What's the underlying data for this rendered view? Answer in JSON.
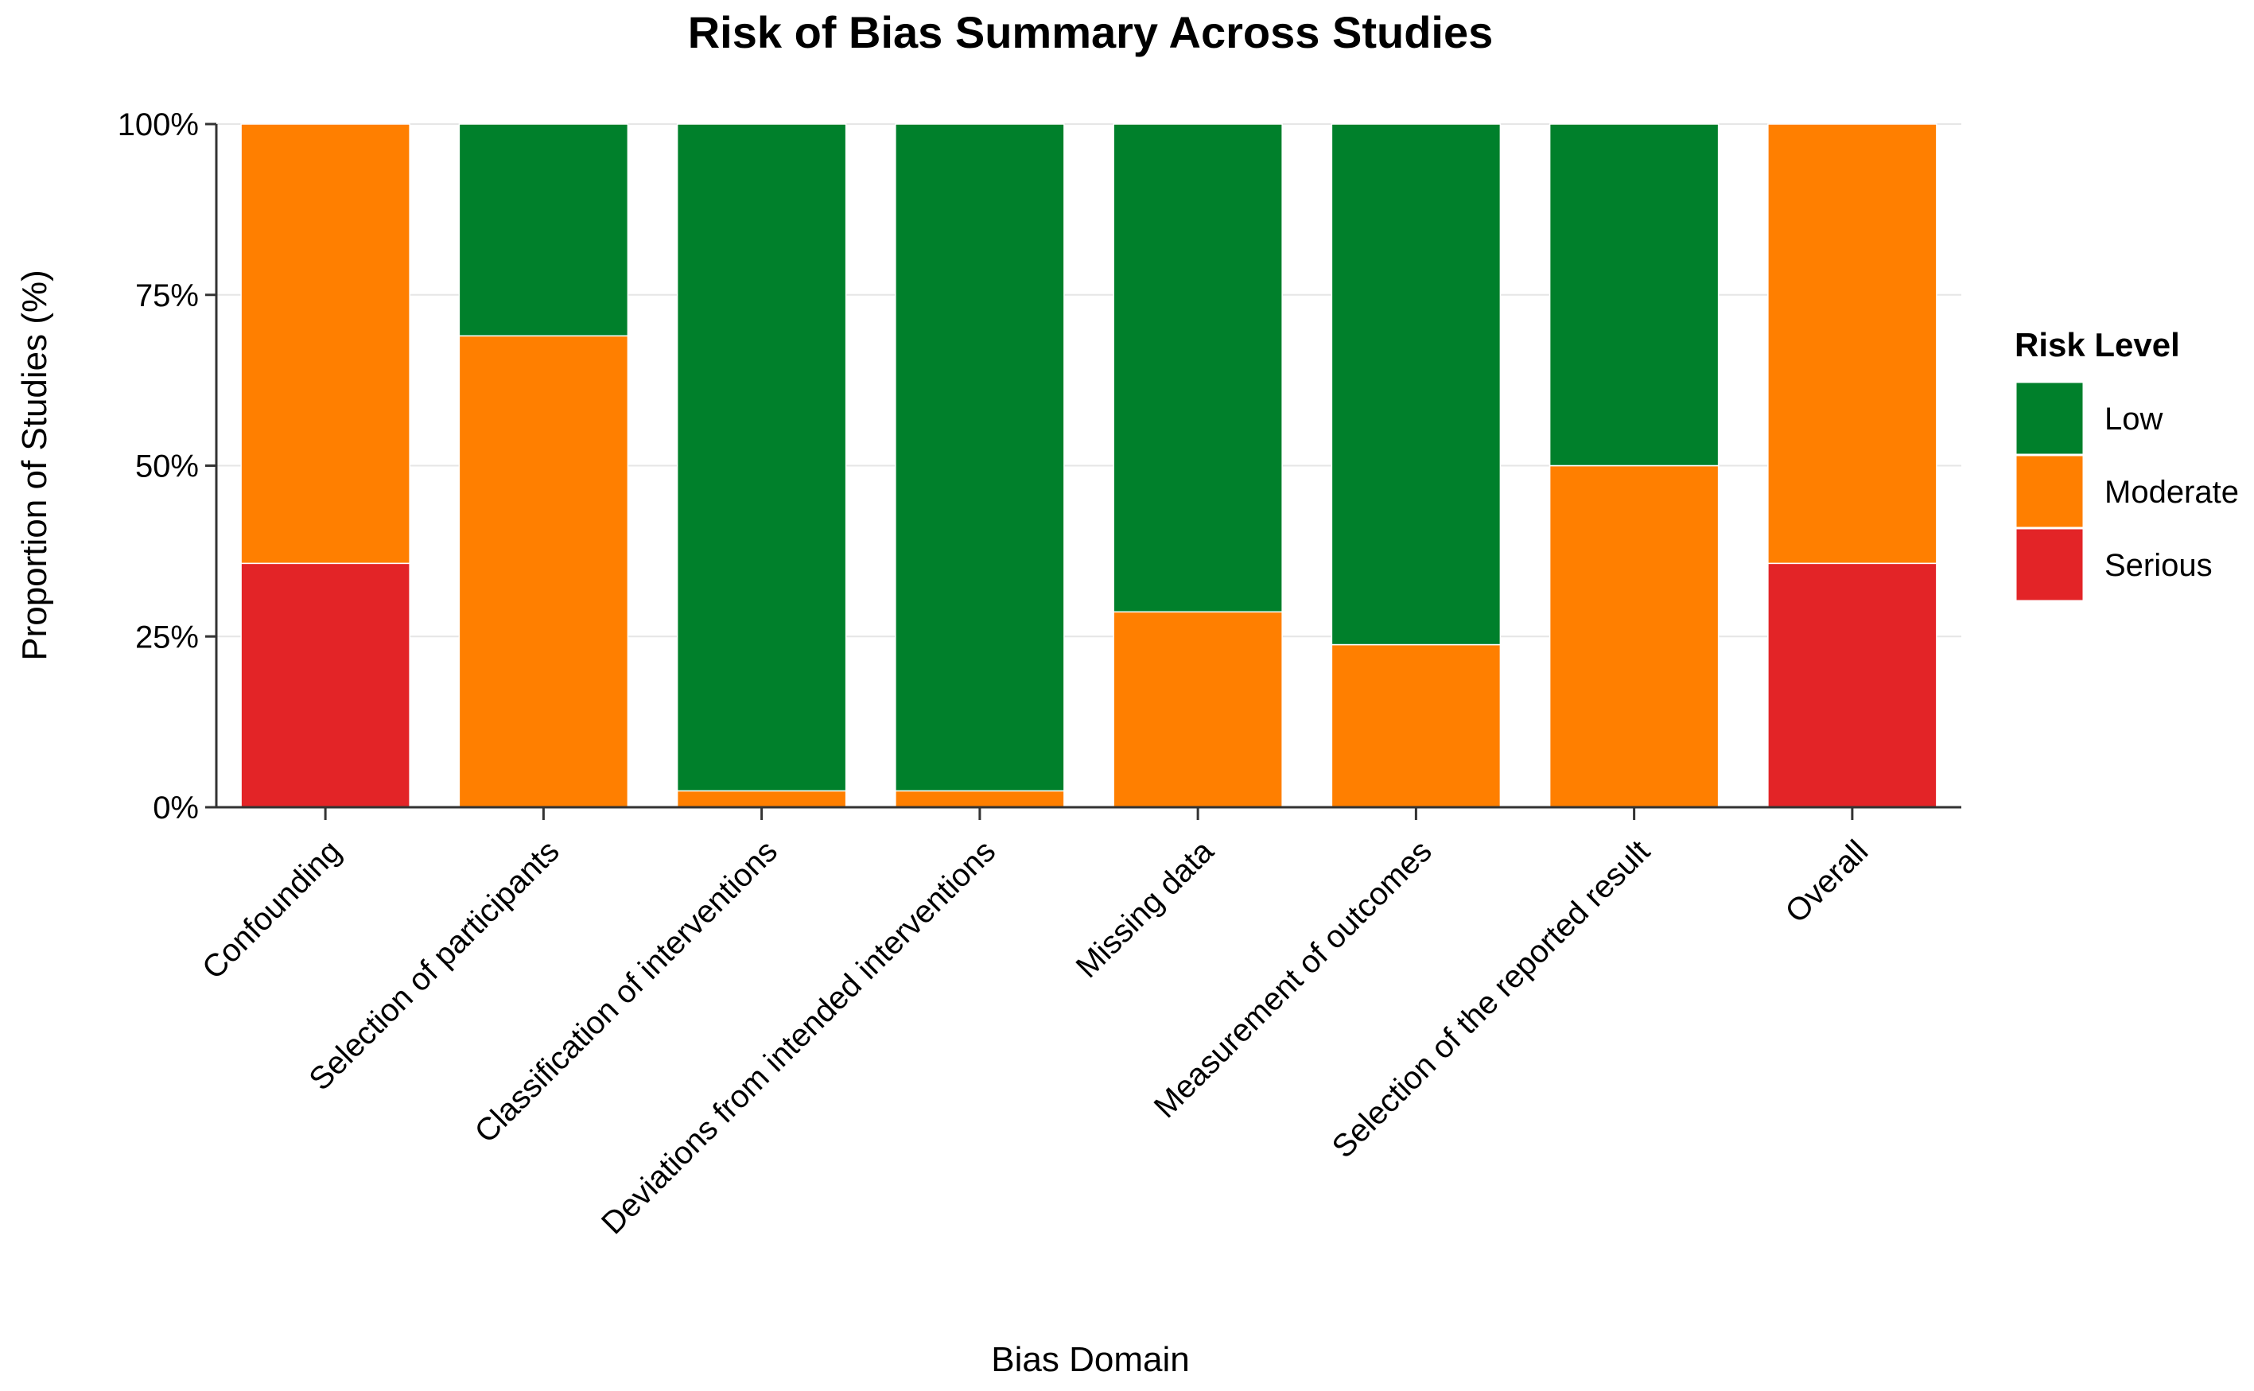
{
  "chart_data": {
    "type": "bar",
    "stacked": true,
    "title": "Risk of Bias Summary Across Studies",
    "xlabel": "Bias Domain",
    "ylabel": "Proportion of Studies (%)",
    "ylim": [
      0,
      100
    ],
    "yticks": [
      0,
      25,
      50,
      75,
      100
    ],
    "ytick_labels": [
      "0%",
      "25%",
      "50%",
      "75%",
      "100%"
    ],
    "grid": true,
    "legend_title": "Risk Level",
    "legend_position": "right",
    "categories": [
      "Confounding",
      "Selection of participants",
      "Classification of interventions",
      "Deviations from intended interventions",
      "Missing data",
      "Measurement of outcomes",
      "Selection of the reported result",
      "Overall"
    ],
    "series": [
      {
        "name": "Serious",
        "color": "#E32427",
        "values": [
          35.7,
          0,
          0,
          0,
          0,
          0,
          0,
          35.7
        ]
      },
      {
        "name": "Moderate",
        "color": "#FF7F00",
        "values": [
          64.3,
          69.0,
          2.4,
          2.4,
          28.6,
          23.8,
          50.0,
          64.3
        ]
      },
      {
        "name": "Low",
        "color": "#00802B",
        "values": [
          0,
          31.0,
          97.6,
          97.6,
          71.4,
          76.2,
          50.0,
          0
        ]
      }
    ],
    "legend_order": [
      "Low",
      "Moderate",
      "Serious"
    ]
  }
}
